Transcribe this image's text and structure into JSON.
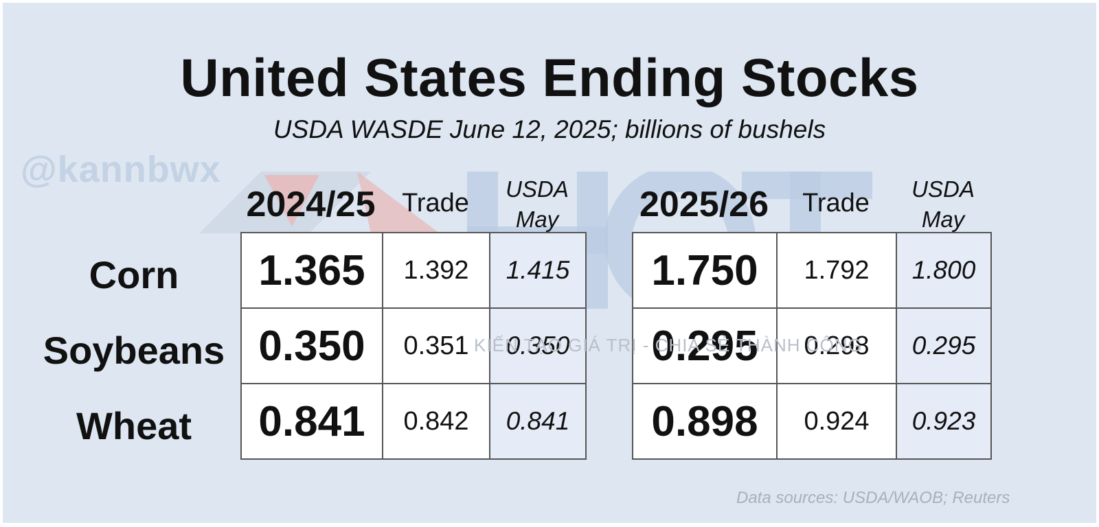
{
  "title": "United States Ending Stocks",
  "subtitle": "USDA WASDE June 12, 2025; billions of bushels",
  "watermark": {
    "handle": "@kannbwx",
    "tagline": "KIẾN TẠO GIÁ TRỊ - CHIA SẺ THÀNH CÔNG"
  },
  "source": "Data sources: USDA/WAOB; Reuters",
  "chart_data": {
    "type": "table",
    "title": "United States Ending Stocks",
    "subtitle": "USDA WASDE June 12, 2025; billions of bushels",
    "rows": [
      "Corn",
      "Soybeans",
      "Wheat"
    ],
    "tables": [
      {
        "season": "2024/25",
        "columns": [
          "2024/25",
          "Trade",
          "USDA May"
        ],
        "trade_label": "Trade",
        "usda_label_1": "USDA",
        "usda_label_2": "May",
        "values": [
          [
            "1.365",
            "1.392",
            "1.415"
          ],
          [
            "0.350",
            "0.351",
            "0.350"
          ],
          [
            "0.841",
            "0.842",
            "0.841"
          ]
        ]
      },
      {
        "season": "2025/26",
        "columns": [
          "2025/26",
          "Trade",
          "USDA May"
        ],
        "trade_label": "Trade",
        "usda_label_1": "USDA",
        "usda_label_2": "May",
        "values": [
          [
            "1.750",
            "1.792",
            "1.800"
          ],
          [
            "0.295",
            "0.298",
            "0.295"
          ],
          [
            "0.898",
            "0.924",
            "0.923"
          ]
        ]
      }
    ]
  }
}
